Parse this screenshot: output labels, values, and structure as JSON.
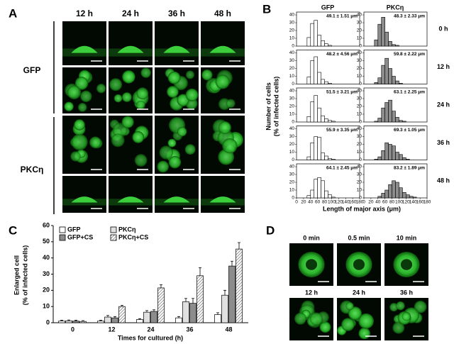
{
  "panel_labels": [
    "A",
    "B",
    "C",
    "D"
  ],
  "panel_a": {
    "columns": [
      "12 h",
      "24 h",
      "36 h",
      "48 h"
    ],
    "rows": [
      "GFP",
      "PKCη"
    ]
  },
  "panel_b": {
    "columns": [
      "GFP",
      "PKCη"
    ],
    "rows": [
      "0 h",
      "12 h",
      "24 h",
      "36 h",
      "48 h"
    ],
    "ylabel": [
      "Number of cells",
      "(% of infected cells)"
    ],
    "xlabel": "Length of major axis (μm)"
  },
  "panel_d": {
    "top": [
      "0 min",
      "0.5 min",
      "10 min"
    ],
    "bottom": [
      "12 h",
      "24 h",
      "36 h"
    ]
  },
  "chart_data": [
    {
      "type": "histogram",
      "annotation": "49.1 ± 1.51 μm",
      "color": "#ffffff",
      "bins": [
        0,
        10,
        20,
        30,
        40,
        50,
        60,
        70,
        80,
        90,
        100,
        110,
        120,
        130,
        140,
        150,
        160,
        170,
        180
      ],
      "values": [
        0,
        0,
        0,
        11,
        29,
        33,
        14,
        7,
        3,
        1,
        0,
        0,
        0,
        0,
        0,
        0,
        0,
        0
      ],
      "xlim": [
        0,
        180
      ],
      "ylim": [
        0,
        40
      ],
      "yticks": [
        0,
        10,
        20,
        30,
        40
      ]
    },
    {
      "type": "histogram",
      "annotation": "48.3 ± 2.33 μm",
      "color": "#8c8c8c",
      "bins": [
        0,
        10,
        20,
        30,
        40,
        50,
        60,
        70,
        80,
        90,
        100,
        110,
        120,
        130,
        140,
        150,
        160,
        170,
        180
      ],
      "values": [
        0,
        0,
        0,
        8,
        28,
        37,
        18,
        6,
        2,
        1,
        0,
        0,
        0,
        0,
        0,
        0,
        0,
        0
      ],
      "xlim": [
        0,
        180
      ],
      "ylim": [
        0,
        40
      ],
      "yticks": [
        0,
        10,
        20,
        30,
        40
      ]
    },
    {
      "type": "histogram",
      "annotation": "48.2 ± 4.56 μm",
      "color": "#ffffff",
      "bins": [
        0,
        10,
        20,
        30,
        40,
        50,
        60,
        70,
        80,
        90,
        100,
        110,
        120,
        130,
        140,
        150,
        160,
        170,
        180
      ],
      "values": [
        0,
        0,
        0,
        9,
        30,
        35,
        15,
        6,
        3,
        1,
        0,
        0,
        0,
        0,
        0,
        0,
        0,
        0
      ],
      "xlim": [
        0,
        180
      ],
      "ylim": [
        0,
        40
      ],
      "yticks": [
        0,
        10,
        20,
        30,
        40
      ]
    },
    {
      "type": "histogram",
      "annotation": "59.8 ± 2.22 μm",
      "color": "#8c8c8c",
      "bins": [
        0,
        10,
        20,
        30,
        40,
        50,
        60,
        70,
        80,
        90,
        100,
        110,
        120,
        130,
        140,
        150,
        160,
        170,
        180
      ],
      "values": [
        0,
        0,
        0,
        2,
        8,
        24,
        33,
        20,
        10,
        4,
        1,
        0,
        0,
        0,
        0,
        0,
        0,
        0
      ],
      "xlim": [
        0,
        180
      ],
      "ylim": [
        0,
        40
      ],
      "yticks": [
        0,
        10,
        20,
        30,
        40
      ]
    },
    {
      "type": "histogram",
      "annotation": "51.5 ± 3.21 μm",
      "color": "#ffffff",
      "bins": [
        0,
        10,
        20,
        30,
        40,
        50,
        60,
        70,
        80,
        90,
        100,
        110,
        120,
        130,
        140,
        150,
        160,
        170,
        180
      ],
      "values": [
        0,
        0,
        0,
        7,
        26,
        34,
        18,
        8,
        4,
        2,
        1,
        0,
        0,
        0,
        0,
        0,
        0,
        0
      ],
      "xlim": [
        0,
        180
      ],
      "ylim": [
        0,
        40
      ],
      "yticks": [
        0,
        10,
        20,
        30,
        40
      ]
    },
    {
      "type": "histogram",
      "annotation": "63.1 ± 2.25 μm",
      "color": "#8c8c8c",
      "bins": [
        0,
        10,
        20,
        30,
        40,
        50,
        60,
        70,
        80,
        90,
        100,
        110,
        120,
        130,
        140,
        150,
        160,
        170,
        180
      ],
      "values": [
        0,
        0,
        0,
        1,
        5,
        18,
        25,
        28,
        14,
        6,
        2,
        1,
        0,
        0,
        0,
        0,
        0,
        0
      ],
      "xlim": [
        0,
        180
      ],
      "ylim": [
        0,
        40
      ],
      "yticks": [
        0,
        10,
        20,
        30,
        40
      ]
    },
    {
      "type": "histogram",
      "annotation": "55.9 ± 3.35 μm",
      "color": "#ffffff",
      "bins": [
        0,
        10,
        20,
        30,
        40,
        50,
        60,
        70,
        80,
        90,
        100,
        110,
        120,
        130,
        140,
        150,
        160,
        170,
        180
      ],
      "values": [
        0,
        0,
        0,
        4,
        22,
        30,
        29,
        9,
        5,
        2,
        1,
        0,
        0,
        0,
        0,
        0,
        0,
        0
      ],
      "xlim": [
        0,
        180
      ],
      "ylim": [
        0,
        40
      ],
      "yticks": [
        0,
        10,
        20,
        30,
        40
      ]
    },
    {
      "type": "histogram",
      "annotation": "69.3 ± 1.05 μm",
      "color": "#8c8c8c",
      "bins": [
        0,
        10,
        20,
        30,
        40,
        50,
        60,
        70,
        80,
        90,
        100,
        110,
        120,
        130,
        140,
        150,
        160,
        170,
        180
      ],
      "values": [
        0,
        0,
        0,
        1,
        4,
        12,
        22,
        20,
        18,
        10,
        7,
        3,
        1,
        0,
        0,
        0,
        0,
        0
      ],
      "xlim": [
        0,
        180
      ],
      "ylim": [
        0,
        40
      ],
      "yticks": [
        0,
        10,
        20,
        30,
        40
      ]
    },
    {
      "type": "histogram",
      "annotation": "64.1 ± 2.45 μm",
      "color": "#ffffff",
      "bins": [
        0,
        10,
        20,
        30,
        40,
        50,
        60,
        70,
        80,
        90,
        100,
        110,
        120,
        130,
        140,
        150,
        160,
        170,
        180
      ],
      "values": [
        0,
        0,
        0,
        3,
        10,
        24,
        26,
        22,
        9,
        4,
        1,
        0,
        0,
        0,
        0,
        0,
        0,
        0
      ],
      "xlim": [
        0,
        180
      ],
      "ylim": [
        0,
        40
      ],
      "yticks": [
        0,
        10,
        20,
        30,
        40
      ],
      "xticks": [
        0,
        20,
        40,
        60,
        80,
        100,
        120,
        140,
        160,
        180
      ]
    },
    {
      "type": "histogram",
      "annotation": "83.2 ± 1.89 μm",
      "color": "#8c8c8c",
      "bins": [
        0,
        10,
        20,
        30,
        40,
        50,
        60,
        70,
        80,
        90,
        100,
        110,
        120,
        130,
        140,
        150,
        160,
        170,
        180
      ],
      "values": [
        0,
        0,
        0,
        0,
        2,
        6,
        10,
        17,
        22,
        20,
        13,
        7,
        4,
        2,
        1,
        0,
        0,
        0
      ],
      "xlim": [
        0,
        180
      ],
      "ylim": [
        0,
        40
      ],
      "yticks": [
        0,
        10,
        20,
        30,
        40
      ],
      "xticks": [
        0,
        20,
        40,
        60,
        80,
        100,
        120,
        140,
        160,
        180
      ]
    },
    {
      "type": "bar",
      "ylabel": [
        "Enlarged cell",
        "(% of infected cells)"
      ],
      "xlabel": "Times for cultured (h)",
      "categories": [
        "0",
        "12",
        "24",
        "36",
        "48"
      ],
      "ylim": [
        0,
        60
      ],
      "yticks": [
        0,
        10,
        20,
        30,
        40,
        50,
        60
      ],
      "series": [
        {
          "name": "GFP",
          "color": "#ffffff",
          "values": [
            1,
            1,
            2,
            3,
            5
          ],
          "errors": [
            0.5,
            0.5,
            0.5,
            0.8,
            1.2
          ]
        },
        {
          "name": "PKCη",
          "color": "#e0e0e0",
          "values": [
            1.2,
            3.5,
            6.5,
            13,
            17
          ],
          "errors": [
            0.5,
            1,
            1,
            2,
            3
          ]
        },
        {
          "name": "GFP+CS",
          "color": "#8c8c8c",
          "values": [
            1,
            3,
            7,
            12,
            35
          ],
          "errors": [
            0.5,
            0.8,
            1,
            3,
            3
          ]
        },
        {
          "name": "PKCη+CS",
          "color": "#ffffff",
          "hatch": true,
          "values": [
            0.8,
            10,
            21.5,
            29,
            45.5
          ],
          "errors": [
            0.5,
            0.8,
            2,
            5,
            4
          ]
        }
      ]
    }
  ]
}
